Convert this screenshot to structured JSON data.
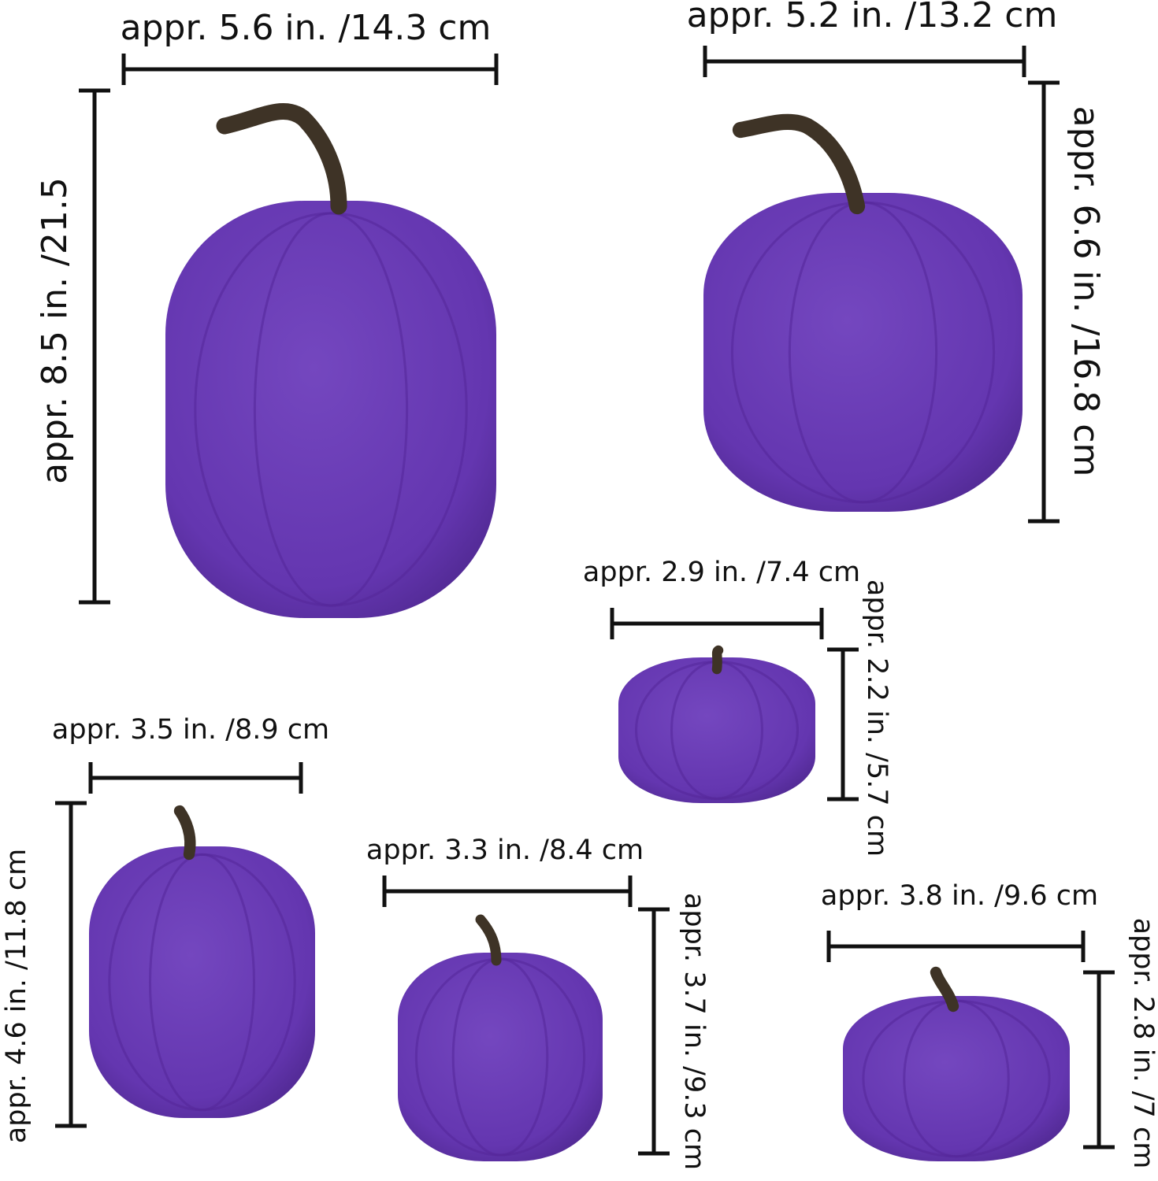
{
  "pumpkins": [
    {
      "width": "appr. 5.6 in. /14.3 cm",
      "height": "appr. 8.5 in. /21.5"
    },
    {
      "width": "appr. 5.2 in. /13.2 cm",
      "height": "appr. 6.6 in. /16.8 cm"
    },
    {
      "width": "appr. 2.9 in. /7.4 cm",
      "height": "appr. 2.2 in. /5.7 cm"
    },
    {
      "width": "appr. 3.5 in. /8.9 cm",
      "height": "appr. 4.6 in. /11.8 cm"
    },
    {
      "width": "appr. 3.3 in. /8.4 cm",
      "height": "appr. 3.7 in. /9.3 cm"
    },
    {
      "width": "appr. 3.8 in. /9.6 cm",
      "height": "appr. 2.8 in. /7 cm"
    }
  ]
}
